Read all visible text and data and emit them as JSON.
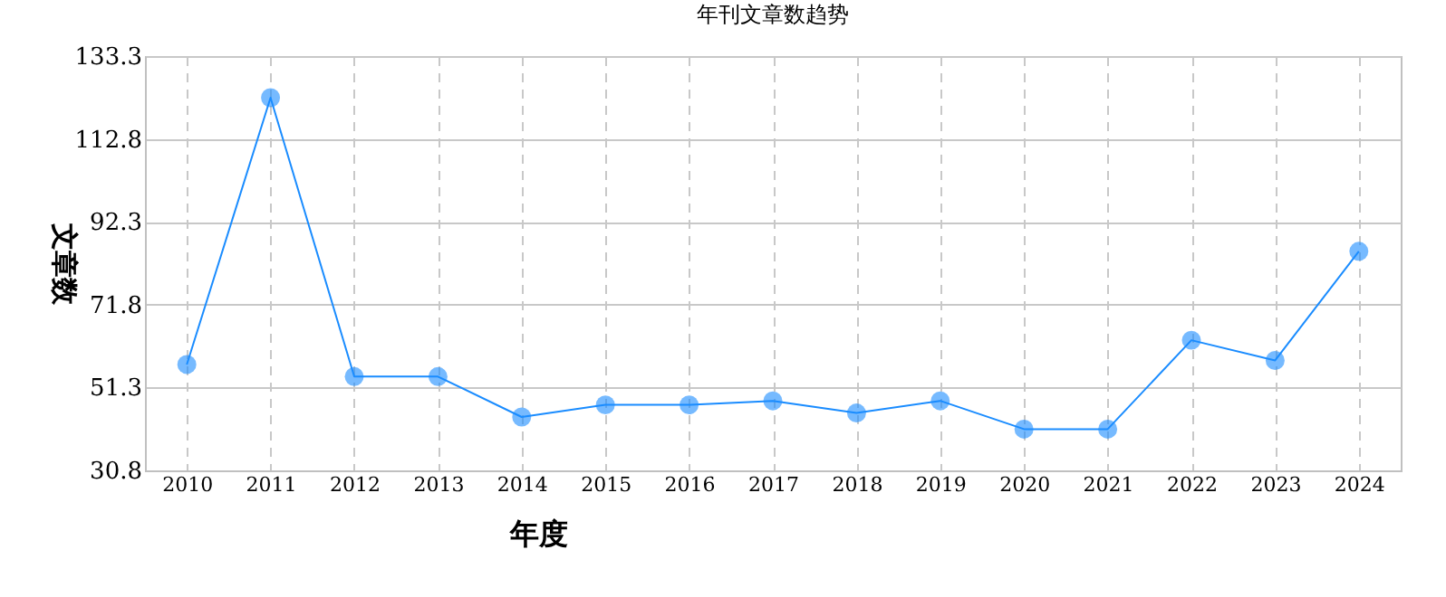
{
  "chart_data": {
    "type": "line",
    "title": "年刊文章数趋势",
    "xlabel": "年度",
    "ylabel": "文章数",
    "categories": [
      "2010",
      "2011",
      "2012",
      "2013",
      "2014",
      "2015",
      "2016",
      "2017",
      "2018",
      "2019",
      "2020",
      "2021",
      "2022",
      "2023",
      "2024"
    ],
    "series": [
      {
        "color": "#1a8cff",
        "values": [
          57,
          123,
          54,
          54,
          44,
          47,
          47,
          48,
          45,
          48,
          41,
          41,
          63,
          58,
          85
        ]
      }
    ],
    "ylim": [
      30.8,
      133.3
    ],
    "yticks": [
      30.8,
      51.3,
      71.8,
      92.3,
      112.8,
      133.3
    ],
    "grid": true,
    "marker": "circle",
    "line_style": "solid"
  }
}
